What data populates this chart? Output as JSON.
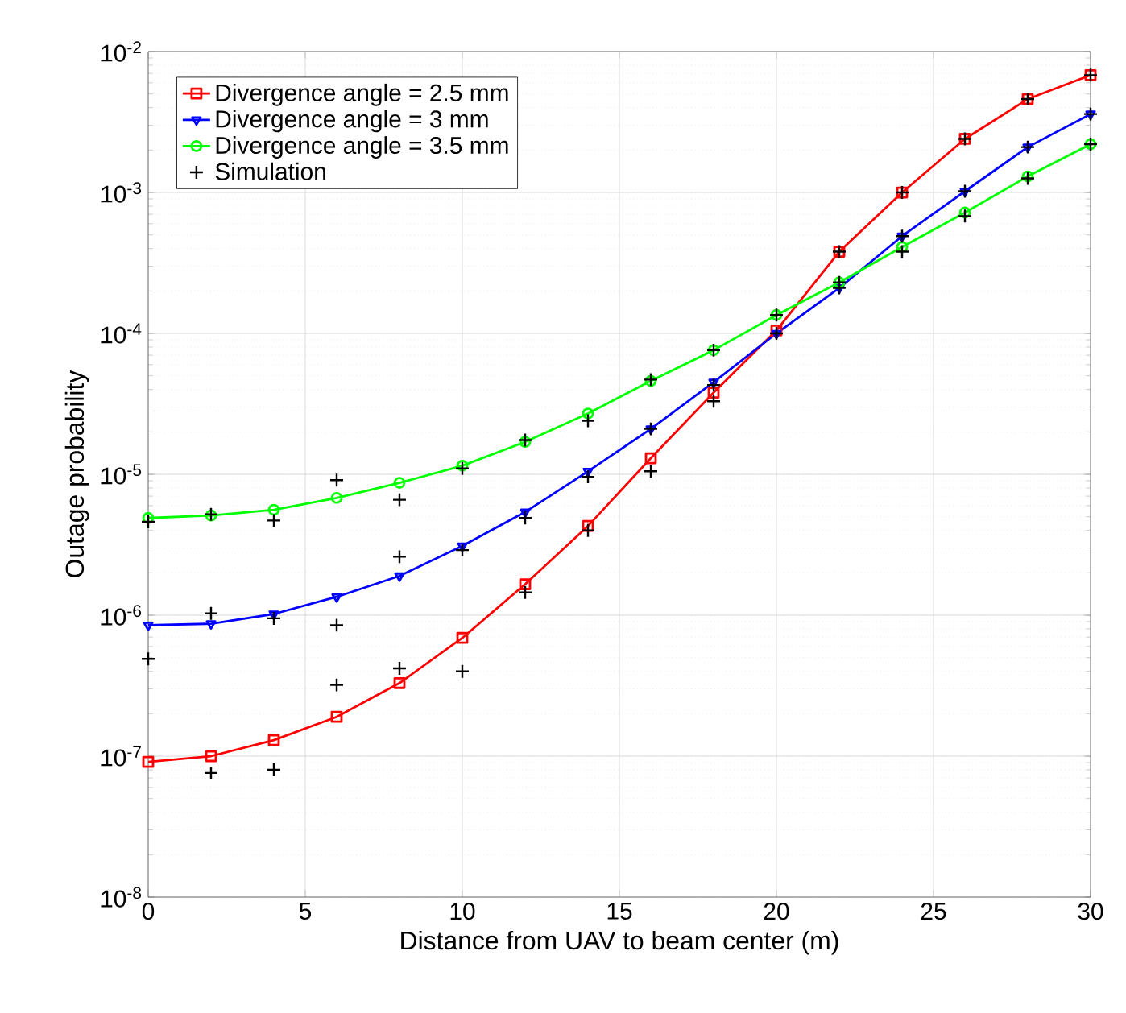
{
  "chart_data": {
    "type": "line",
    "xlabel": "Distance from UAV to beam center (m)",
    "ylabel": "Outage probability",
    "log": "y",
    "grid": true,
    "legend": "top left",
    "line_style": "solid",
    "xlim": [
      0,
      30
    ],
    "xticks": [
      0,
      5,
      10,
      15,
      20,
      25,
      30
    ],
    "ylim": [
      1e-08,
      0.01
    ],
    "yticks": [
      {
        "value": 1e-08,
        "label": "10$^{-8}$"
      },
      {
        "value": 1e-07,
        "label": "10$^{-7}$"
      },
      {
        "value": 1e-06,
        "label": "10$^{-6}$"
      },
      {
        "value": 1e-05,
        "label": "10$^{-5}$"
      },
      {
        "value": 0.0001,
        "label": "10$^{-4}$"
      },
      {
        "value": 0.001,
        "label": "10$^{-3}$"
      },
      {
        "value": 0.01,
        "label": "10$^{-2}$"
      }
    ],
    "x": [
      0,
      2,
      4,
      6,
      8,
      10,
      12,
      14,
      16,
      18,
      20,
      22,
      24,
      26,
      28,
      30
    ],
    "series": [
      {
        "name": "Divergence angle = 2.5 mm",
        "color": "#ff0000",
        "marker": "square",
        "values": [
          9.1e-08,
          1e-07,
          1.3e-07,
          1.9e-07,
          3.3e-07,
          6.9e-07,
          1.66e-06,
          4.3e-06,
          1.3e-05,
          3.8e-05,
          0.000105,
          0.00038,
          0.001,
          0.0024,
          0.0046,
          0.0068
        ]
      },
      {
        "name": "Divergence angle = 3 mm",
        "color": "#0000ff",
        "marker": "triangle",
        "values": [
          8.5e-07,
          8.7e-07,
          1.02e-06,
          1.35e-06,
          1.9e-06,
          3.1e-06,
          5.4e-06,
          1.05e-05,
          2.1e-05,
          4.5e-05,
          0.0001,
          0.00021,
          0.00049,
          0.00102,
          0.0021,
          0.0036
        ]
      },
      {
        "name": "Divergence angle = 3.5 mm",
        "color": "#00ff00",
        "marker": "circle",
        "values": [
          4.9e-06,
          5.1e-06,
          5.6e-06,
          6.8e-06,
          8.7e-06,
          1.15e-05,
          1.7e-05,
          2.7e-05,
          4.6e-05,
          7.6e-05,
          0.000135,
          0.00023,
          0.00041,
          0.00072,
          0.0013,
          0.0022
        ]
      },
      {
        "name": "Simulation",
        "type": "scatter",
        "color": "#000000",
        "marker": "cross",
        "x": [
          0,
          0,
          2,
          2,
          2,
          4,
          4,
          4,
          6,
          6,
          6,
          8,
          8,
          8,
          10,
          10,
          10,
          12,
          12,
          12,
          14,
          14,
          14,
          16,
          16,
          16,
          18,
          18,
          18,
          20,
          20,
          22,
          22,
          22,
          24,
          24,
          24,
          26,
          26,
          26,
          28,
          28,
          28,
          30,
          30,
          30
        ],
        "values": [
          4.6e-06,
          4.9e-07,
          5.2e-06,
          1.03e-06,
          7.6e-08,
          4.7e-06,
          9.5e-07,
          8e-08,
          9.1e-06,
          8.5e-07,
          3.2e-07,
          6.6e-06,
          2.6e-06,
          4.2e-07,
          1.1e-05,
          2.9e-06,
          4e-07,
          1.75e-05,
          4.9e-06,
          1.45e-06,
          2.4e-05,
          9.6e-06,
          4e-06,
          4.7e-05,
          2.1e-05,
          1.05e-05,
          7.6e-05,
          4.3e-05,
          3.3e-05,
          0.000135,
          0.0001,
          0.00038,
          0.00023,
          0.00021,
          0.001,
          0.00049,
          0.00038,
          0.0024,
          0.00102,
          0.00068,
          0.0046,
          0.0021,
          0.00126,
          0.0068,
          0.0036,
          0.0022
        ]
      }
    ]
  }
}
